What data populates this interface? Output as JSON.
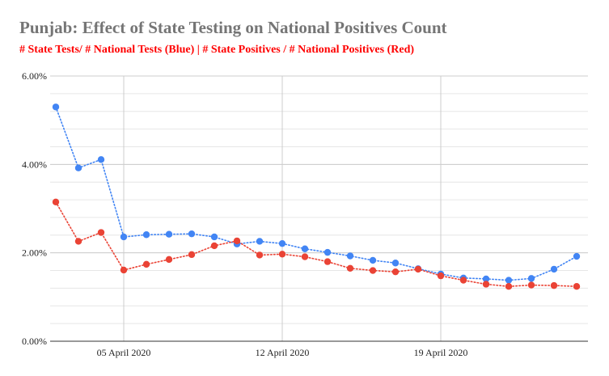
{
  "chart_data": {
    "type": "line",
    "title": "Punjab: Effect of State Testing on National Positives Count",
    "subtitle": "# State Tests/ # National Tests (Blue) | # State Positives / # National Positives (Red)",
    "xlabel": "",
    "ylabel": "",
    "ylim": [
      0,
      6
    ],
    "yticks": [
      0,
      2,
      4,
      6
    ],
    "ytick_labels": [
      "0.00%",
      "2.00%",
      "4.00%",
      "6.00%"
    ],
    "x": [
      1,
      2,
      3,
      4,
      5,
      6,
      7,
      8,
      9,
      10,
      11,
      12,
      13,
      14,
      15,
      16,
      17,
      18,
      19,
      20,
      21,
      22,
      23,
      24
    ],
    "xtick_positions": [
      4,
      11,
      18
    ],
    "xtick_labels": [
      "05 April 2020",
      "12 April 2020",
      "19 April 2020"
    ],
    "grid": true,
    "series": [
      {
        "name": "# State Tests/ # National Tests",
        "color": "#4285f4",
        "values": [
          5.3,
          3.92,
          4.11,
          2.36,
          2.41,
          2.42,
          2.43,
          2.36,
          2.2,
          2.26,
          2.21,
          2.09,
          2.01,
          1.93,
          1.83,
          1.77,
          1.64,
          1.52,
          1.43,
          1.41,
          1.38,
          1.42,
          1.63,
          1.92
        ]
      },
      {
        "name": "# State Positives / # National Positives",
        "color": "#ea4335",
        "values": [
          3.15,
          2.26,
          2.46,
          1.61,
          1.74,
          1.85,
          1.96,
          2.16,
          2.27,
          1.95,
          1.97,
          1.91,
          1.8,
          1.65,
          1.6,
          1.57,
          1.63,
          1.48,
          1.38,
          1.29,
          1.24,
          1.27,
          1.26,
          1.24
        ]
      }
    ]
  }
}
